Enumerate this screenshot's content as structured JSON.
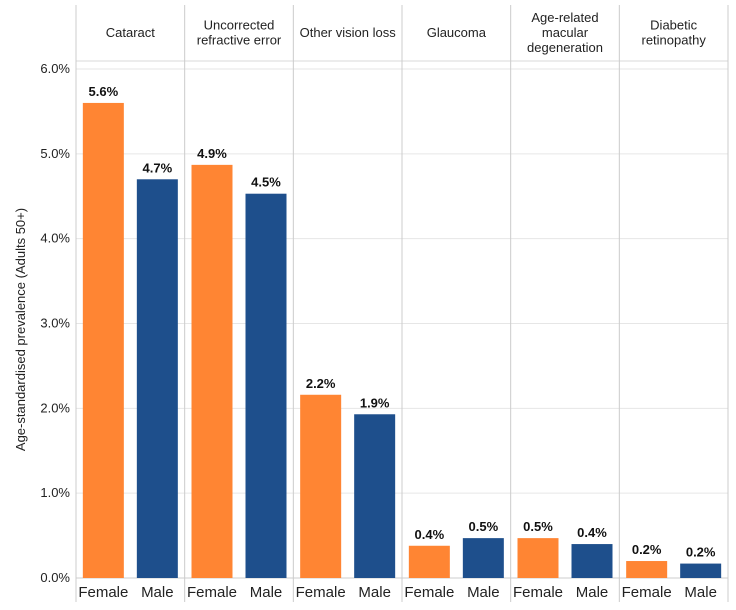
{
  "chart_data": {
    "type": "bar",
    "ylabel": "Age-standardised prevalence (Adults 50+)",
    "ylim": [
      0,
      6.0
    ],
    "yticks": [
      "0.0%",
      "1.0%",
      "2.0%",
      "3.0%",
      "4.0%",
      "5.0%",
      "6.0%"
    ],
    "ytick_values": [
      0,
      1,
      2,
      3,
      4,
      5,
      6
    ],
    "grid": true,
    "categories": [
      "Female",
      "Male"
    ],
    "colors": {
      "Female": "#FF8533",
      "Male": "#1E4F8C"
    },
    "panels": [
      {
        "title": [
          "Cataract"
        ],
        "values": [
          5.6,
          4.7
        ],
        "labels": [
          "5.6%",
          "4.7%"
        ]
      },
      {
        "title": [
          "Uncorrected",
          "refractive error"
        ],
        "values": [
          4.87,
          4.53
        ],
        "labels": [
          "4.9%",
          "4.5%"
        ]
      },
      {
        "title": [
          "Other vision loss"
        ],
        "values": [
          2.16,
          1.93
        ],
        "labels": [
          "2.2%",
          "1.9%"
        ]
      },
      {
        "title": [
          "Glaucoma"
        ],
        "values": [
          0.38,
          0.47
        ],
        "labels": [
          "0.4%",
          "0.5%"
        ]
      },
      {
        "title": [
          "Age-related",
          "macular",
          "degeneration"
        ],
        "values": [
          0.47,
          0.4
        ],
        "labels": [
          "0.5%",
          "0.4%"
        ]
      },
      {
        "title": [
          "Diabetic",
          "retinopathy"
        ],
        "values": [
          0.2,
          0.17
        ],
        "labels": [
          "0.2%",
          "0.2%"
        ]
      }
    ]
  }
}
